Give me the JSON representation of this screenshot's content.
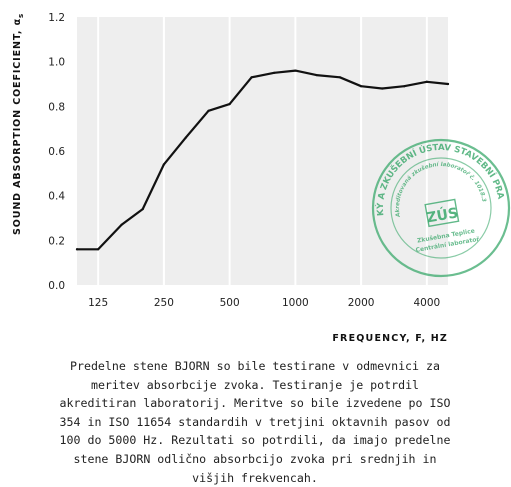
{
  "chart_data": {
    "type": "line",
    "x": [
      100,
      125,
      160,
      200,
      250,
      315,
      400,
      500,
      630,
      800,
      1000,
      1250,
      1600,
      2000,
      2500,
      3150,
      4000,
      5000
    ],
    "series": [
      {
        "values": [
          0.16,
          0.16,
          0.27,
          0.34,
          0.54,
          0.66,
          0.78,
          0.81,
          0.93,
          0.95,
          0.96,
          0.94,
          0.93,
          0.89,
          0.88,
          0.89,
          0.91,
          0.9
        ]
      }
    ],
    "xticks": [
      125,
      250,
      500,
      1000,
      2000,
      4000
    ],
    "xtick_labels": [
      "125",
      "250",
      "500",
      "1000",
      "2000",
      "4000"
    ],
    "xscale": "log",
    "xlim": [
      100,
      5000
    ],
    "yticks": [
      0.0,
      0.2,
      0.4,
      0.6,
      0.8,
      1.0,
      1.2
    ],
    "ytick_labels": [
      "0.0",
      "0.2",
      "0.4",
      "0.6",
      "0.8",
      "1.0",
      "1.2"
    ],
    "ylim": [
      0,
      1.2
    ],
    "ylabel": "SOUND ABSORPTION COEFICIENT, αs",
    "xlabel": "FREQUENCY, F, HZ",
    "background": "#eeeeee",
    "line_color": "#111111",
    "grid": "vertical, white"
  },
  "stamp": {
    "top_arc": "TECHNICKÝ A ZKUŠEBNÍ ÚSTAV STAVEBNÍ PRAHA, s.p.",
    "inner_line1": "Akreditovaná zkušební laboratoř č. 1018.3",
    "logo": "ZÚS",
    "bottom_line1": "Zkušebna Teplice",
    "bottom_line2": "Centrální laboratoř",
    "color": "#3aa86b"
  },
  "caption": {
    "text": "Predelne stene BJORN so bile testirane v odmevnici za meritev absorbcije zvoka. Testiranje je potrdil akreditiran laboratorij. Meritve so bile izvedene po ISO 354 in ISO 11654 standardih v tretjini oktavnih pasov od 100 do 5000 Hz. Rezultati so potrdili, da imajo predelne stene BJORN odlično absorbcijo zvoka pri srednjih in višjih frekvencah."
  }
}
